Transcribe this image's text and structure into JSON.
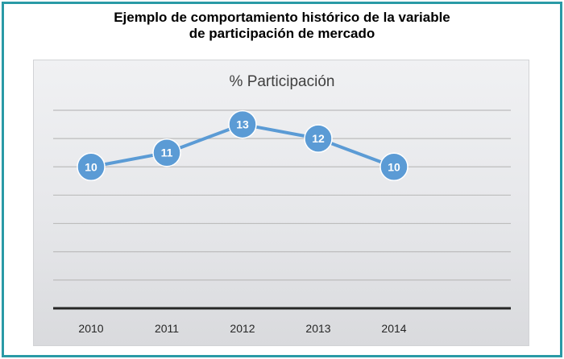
{
  "heading": {
    "line1": "Ejemplo de comportamiento histórico de la variable",
    "line2": "de participación de mercado"
  },
  "chart_data": {
    "type": "line",
    "title": "% Participación",
    "categories": [
      "2010",
      "2011",
      "2012",
      "2013",
      "2014"
    ],
    "values": [
      10,
      11,
      13,
      12,
      10
    ],
    "xlabel": "",
    "ylabel": "",
    "ylim": [
      0,
      14
    ],
    "grid": true,
    "legend": "none",
    "colors": {
      "line": "#5b9bd5",
      "marker": "#5b9bd5",
      "marker_label": "#ffffff",
      "grid": "#bcbcbc",
      "axis": "#262626",
      "frame": "#2a9aa6"
    }
  }
}
